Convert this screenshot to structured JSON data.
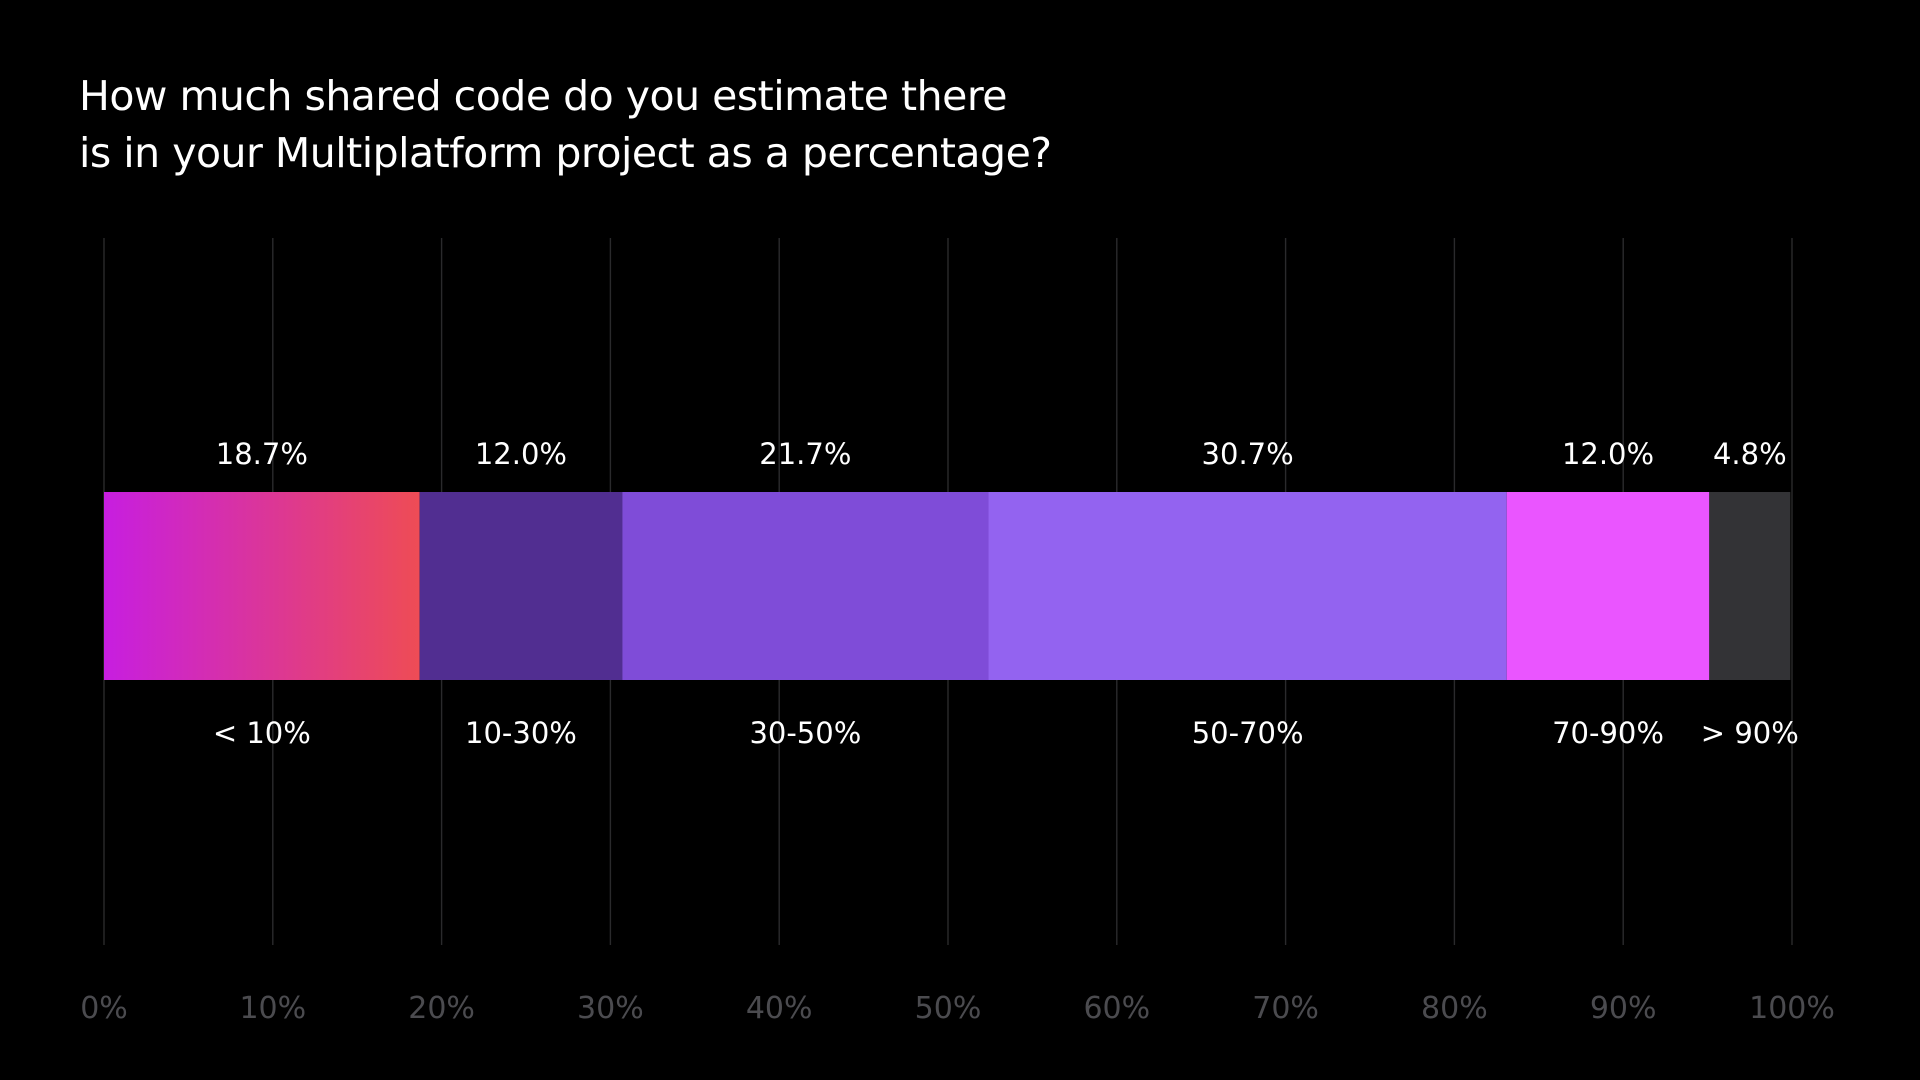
{
  "chart_data": {
    "type": "bar",
    "orientation": "horizontal-stacked",
    "title_lines": [
      "How much shared code do you estimate there",
      "is in your Multiplatform project as a percentage?"
    ],
    "categories": [
      "< 10%",
      "10-30%",
      "30-50%",
      "50-70%",
      "70-90%",
      "> 90%"
    ],
    "values": [
      18.7,
      12.0,
      21.7,
      30.7,
      12.0,
      4.8
    ],
    "value_labels": [
      "18.7%",
      "12.0%",
      "21.7%",
      "30.7%",
      "12.0%",
      "4.8%"
    ],
    "colors": [
      [
        "#c71ee0",
        "#ee4c55"
      ],
      [
        "#512e91"
      ],
      [
        "#7f4cd8"
      ],
      [
        "#9363f0"
      ],
      [
        "#ea55ff"
      ],
      [
        "#333336"
      ]
    ],
    "xlim": [
      0,
      100
    ],
    "x_ticks": [
      0,
      10,
      20,
      30,
      40,
      50,
      60,
      70,
      80,
      90,
      100
    ],
    "x_tick_labels": [
      "0%",
      "10%",
      "20%",
      "30%",
      "40%",
      "50%",
      "60%",
      "70%",
      "80%",
      "90%",
      "100%"
    ],
    "grid": true,
    "legend": "none"
  }
}
